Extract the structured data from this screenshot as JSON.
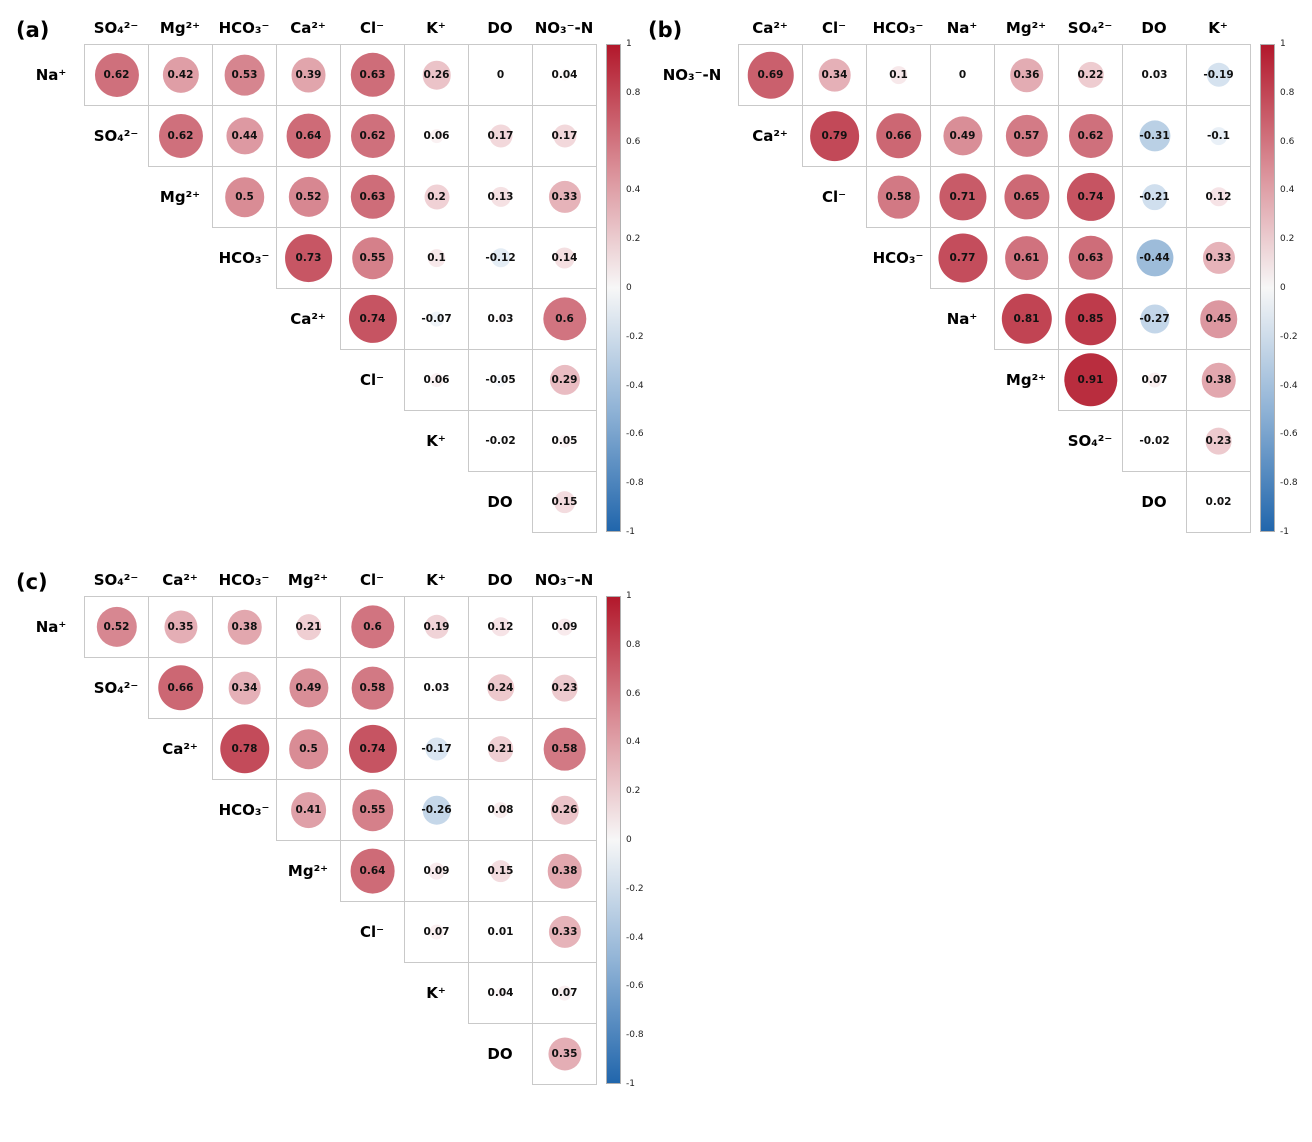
{
  "figure": {
    "background": "#ffffff"
  },
  "colors": {
    "positive_end": "#b2182b",
    "negative_end": "#2166ac",
    "zero": "#ffffff",
    "cell_border": "#c9c9c9",
    "value_text": "#111111"
  },
  "colorbar": {
    "gradient": [
      "#b2182b",
      "#d98c95",
      "#f7f7f7",
      "#90b3d6",
      "#2166ac"
    ],
    "ticks": [
      "1",
      "0.8",
      "0.6",
      "0.4",
      "0.2",
      "0",
      "-0.2",
      "-0.4",
      "-0.6",
      "-0.8",
      "-1"
    ]
  },
  "chart_data": [
    {
      "type": "heatmap",
      "subtype": "upper-triangle correlation matrix with sized circles",
      "panel_label": "(a)",
      "scale": [
        -1,
        1
      ],
      "legend_position": "right",
      "columns": [
        "SO₄²⁻",
        "Mg²⁺",
        "HCO₃⁻",
        "Ca²⁺",
        "Cl⁻",
        "K⁺",
        "DO",
        "NO₃⁻-N"
      ],
      "rows": [
        {
          "label": "Na⁺",
          "values": [
            0.62,
            0.42,
            0.53,
            0.39,
            0.63,
            0.26,
            0,
            0.04
          ]
        },
        {
          "label": "SO₄²⁻",
          "values": [
            0.62,
            0.44,
            0.64,
            0.62,
            0.06,
            0.17,
            0.17
          ]
        },
        {
          "label": "Mg²⁺",
          "values": [
            0.5,
            0.52,
            0.63,
            0.2,
            0.13,
            0.33
          ]
        },
        {
          "label": "HCO₃⁻",
          "values": [
            0.73,
            0.55,
            0.1,
            -0.12,
            0.14
          ]
        },
        {
          "label": "Ca²⁺",
          "values": [
            0.74,
            -0.07,
            0.03,
            0.6
          ]
        },
        {
          "label": "Cl⁻",
          "values": [
            0.06,
            -0.05,
            0.29
          ]
        },
        {
          "label": "K⁺",
          "values": [
            -0.02,
            0.05
          ]
        },
        {
          "label": "DO",
          "values": [
            0.15
          ]
        }
      ]
    },
    {
      "type": "heatmap",
      "subtype": "upper-triangle correlation matrix with sized circles",
      "panel_label": "(b)",
      "scale": [
        -1,
        1
      ],
      "legend_position": "right",
      "columns": [
        "Ca²⁺",
        "Cl⁻",
        "HCO₃⁻",
        "Na⁺",
        "Mg²⁺",
        "SO₄²⁻",
        "DO",
        "K⁺"
      ],
      "rows": [
        {
          "label": "NO₃⁻-N",
          "values": [
            0.69,
            0.34,
            0.1,
            0,
            0.36,
            0.22,
            0.03,
            -0.19
          ]
        },
        {
          "label": "Ca²⁺",
          "values": [
            0.79,
            0.66,
            0.49,
            0.57,
            0.62,
            -0.31,
            -0.1
          ]
        },
        {
          "label": "Cl⁻",
          "values": [
            0.58,
            0.71,
            0.65,
            0.74,
            -0.21,
            0.12
          ]
        },
        {
          "label": "HCO₃⁻",
          "values": [
            0.77,
            0.61,
            0.63,
            -0.44,
            0.33
          ]
        },
        {
          "label": "Na⁺",
          "values": [
            0.81,
            0.85,
            -0.27,
            0.45
          ]
        },
        {
          "label": "Mg²⁺",
          "values": [
            0.91,
            0.07,
            0.38
          ]
        },
        {
          "label": "SO₄²⁻",
          "values": [
            -0.02,
            0.23
          ]
        },
        {
          "label": "DO",
          "values": [
            0.02
          ]
        }
      ]
    },
    {
      "type": "heatmap",
      "subtype": "upper-triangle correlation matrix with sized circles",
      "panel_label": "(c)",
      "scale": [
        -1,
        1
      ],
      "legend_position": "right",
      "columns": [
        "SO₄²⁻",
        "Ca²⁺",
        "HCO₃⁻",
        "Mg²⁺",
        "Cl⁻",
        "K⁺",
        "DO",
        "NO₃⁻-N"
      ],
      "rows": [
        {
          "label": "Na⁺",
          "values": [
            0.52,
            0.35,
            0.38,
            0.21,
            0.6,
            0.19,
            0.12,
            0.09
          ]
        },
        {
          "label": "SO₄²⁻",
          "values": [
            0.66,
            0.34,
            0.49,
            0.58,
            0.03,
            0.24,
            0.23
          ]
        },
        {
          "label": "Ca²⁺",
          "values": [
            0.78,
            0.5,
            0.74,
            -0.17,
            0.21,
            0.58
          ]
        },
        {
          "label": "HCO₃⁻",
          "values": [
            0.41,
            0.55,
            -0.26,
            0.08,
            0.26
          ]
        },
        {
          "label": "Mg²⁺",
          "values": [
            0.64,
            0.09,
            0.15,
            0.38
          ]
        },
        {
          "label": "Cl⁻",
          "values": [
            0.07,
            0.01,
            0.33
          ]
        },
        {
          "label": "K⁺",
          "values": [
            0.04,
            0.07
          ]
        },
        {
          "label": "DO",
          "values": [
            0.35
          ]
        }
      ]
    }
  ]
}
